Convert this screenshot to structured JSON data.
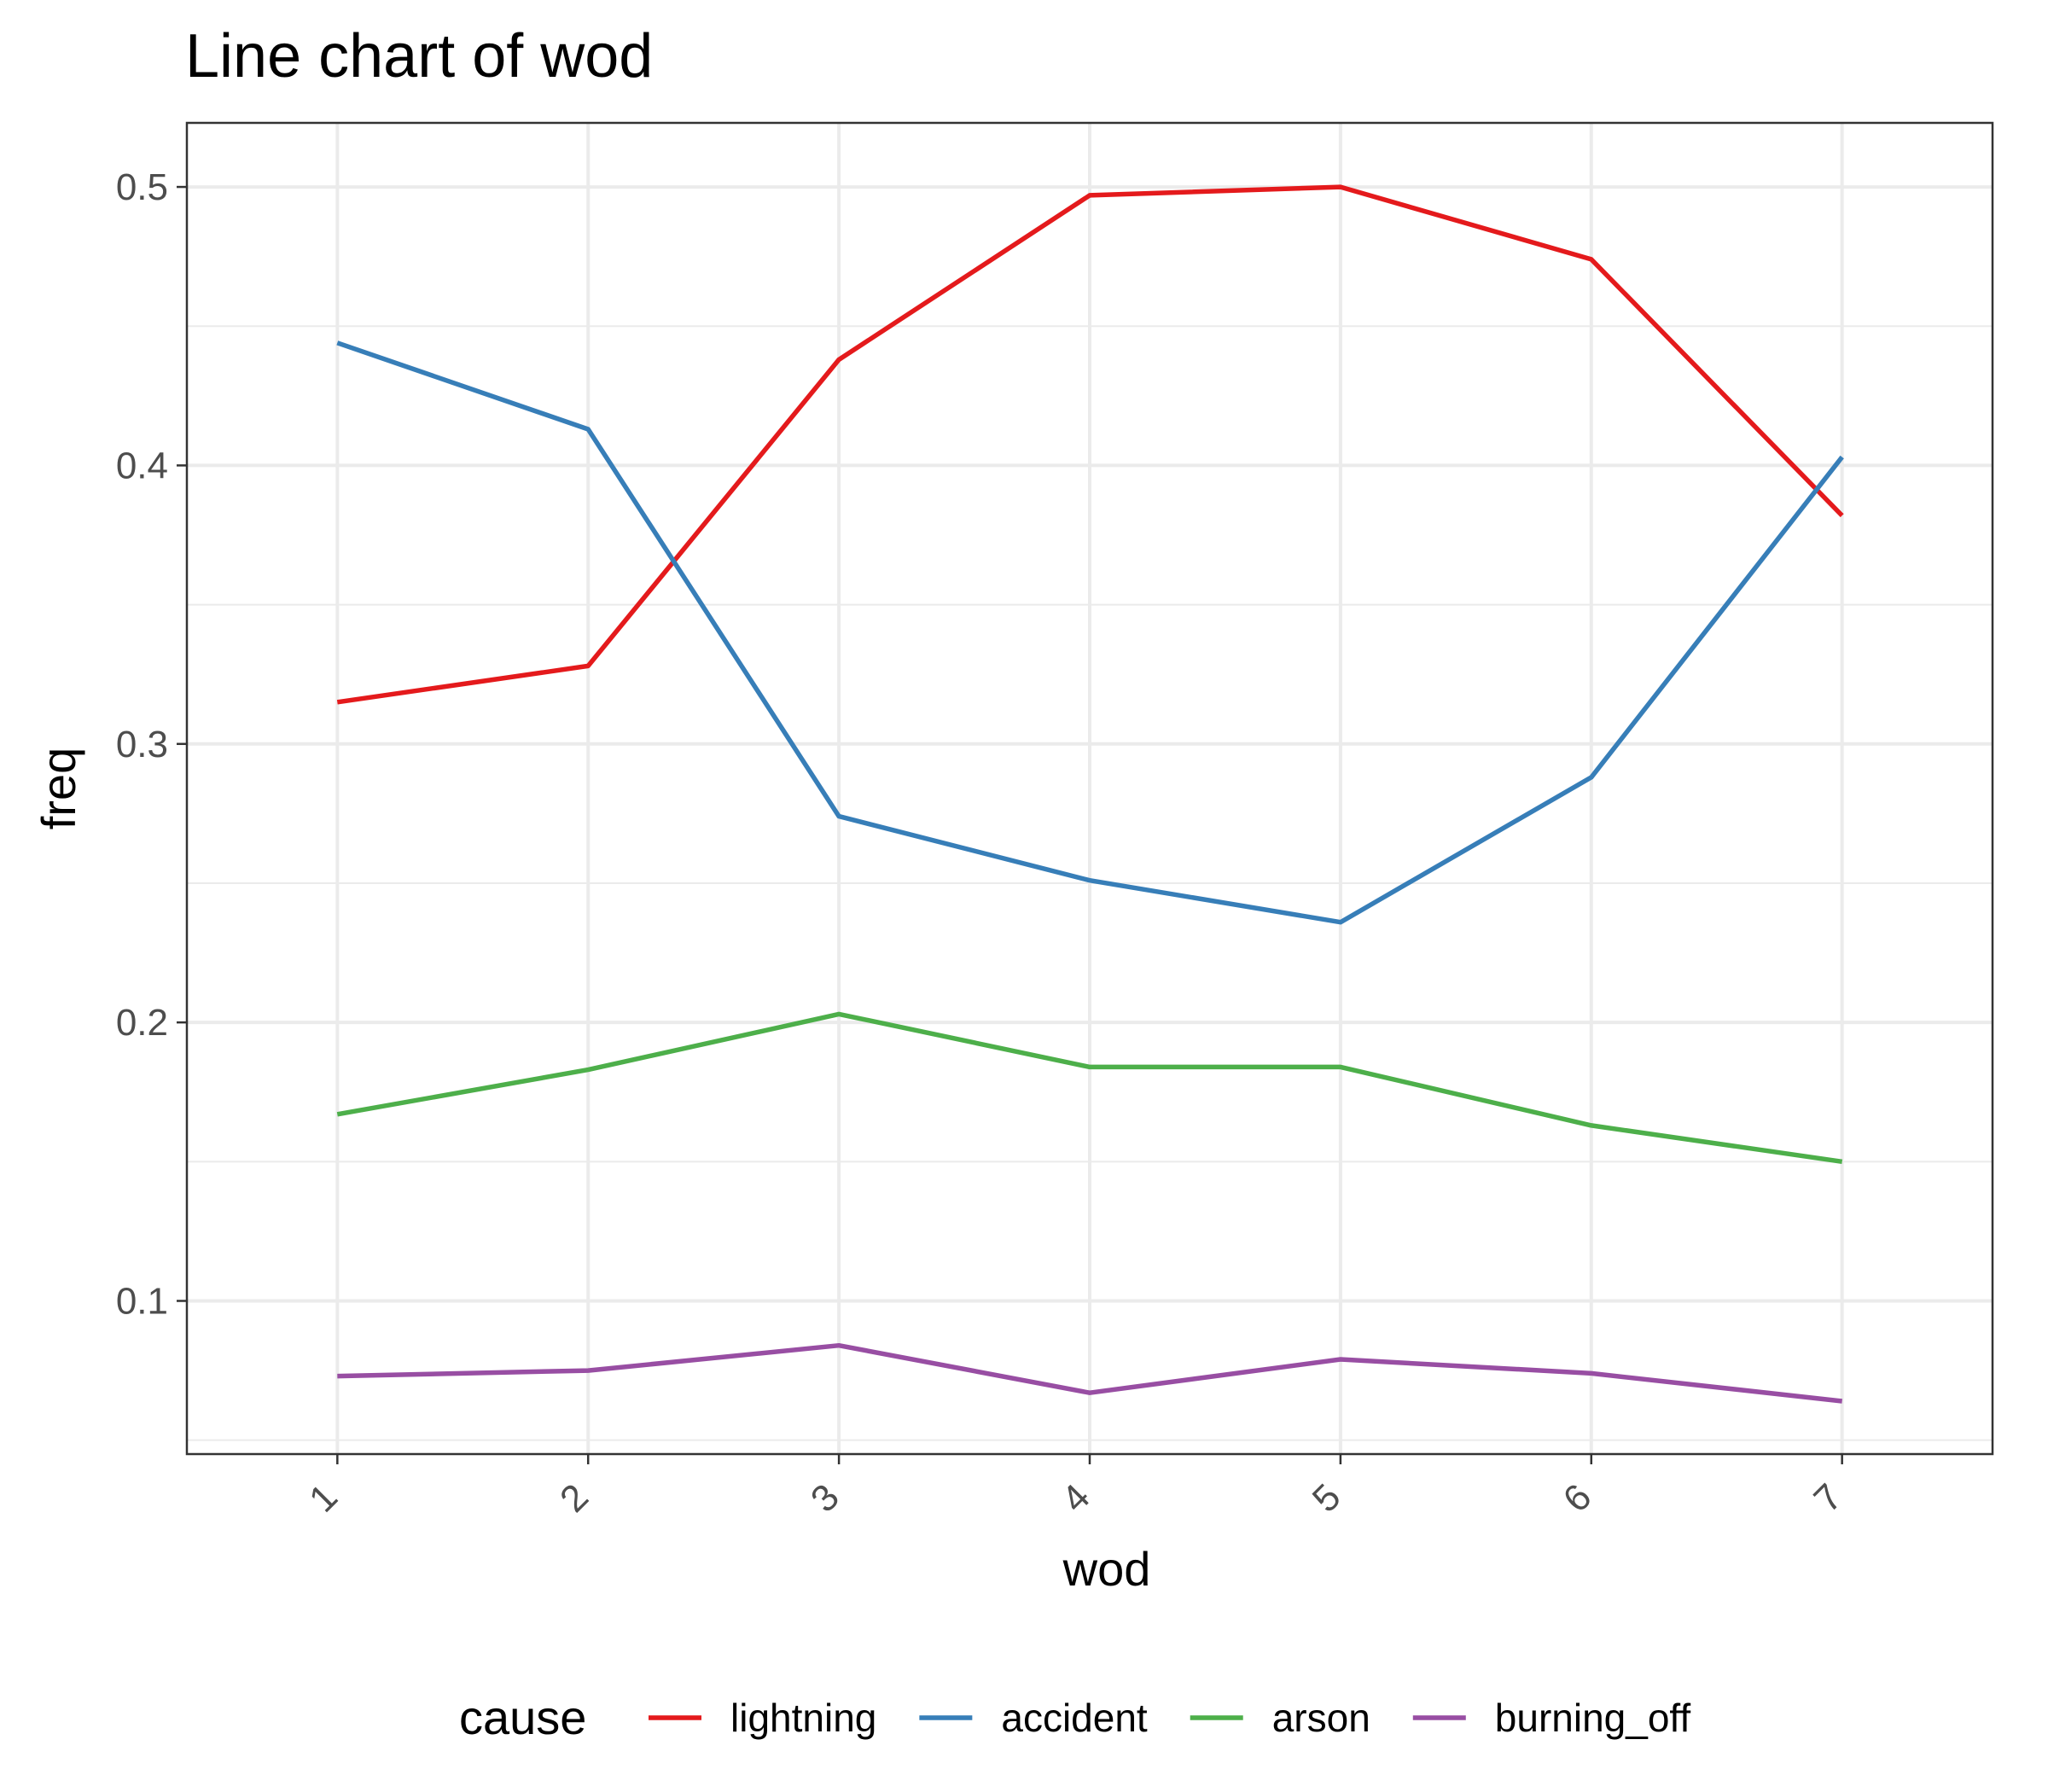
{
  "chart_data": {
    "type": "line",
    "title": "Line chart of wod",
    "xlabel": "wod",
    "ylabel": "freq",
    "x": [
      1,
      2,
      3,
      4,
      5,
      6,
      7
    ],
    "x_ticks": [
      "1",
      "2",
      "3",
      "4",
      "5",
      "6",
      "7"
    ],
    "y_ticks": [
      "0.1",
      "0.2",
      "0.3",
      "0.4",
      "0.5"
    ],
    "xlim": [
      0.4,
      7.6
    ],
    "ylim": [
      0.045,
      0.523
    ],
    "grid": true,
    "legend": {
      "title": "cause",
      "position": "bottom"
    },
    "series": [
      {
        "name": "lightning",
        "color": "#E41A1C",
        "values": [
          0.315,
          0.328,
          0.438,
          0.497,
          0.5,
          0.474,
          0.382
        ]
      },
      {
        "name": "accident",
        "color": "#377EB8",
        "values": [
          0.444,
          0.413,
          0.274,
          0.251,
          0.236,
          0.288,
          0.403
        ]
      },
      {
        "name": "arson",
        "color": "#4DAF4A",
        "values": [
          0.167,
          0.183,
          0.203,
          0.184,
          0.184,
          0.163,
          0.15
        ]
      },
      {
        "name": "burning_off",
        "color": "#984EA3",
        "values": [
          0.073,
          0.075,
          0.084,
          0.067,
          0.079,
          0.074,
          0.064
        ]
      }
    ]
  }
}
